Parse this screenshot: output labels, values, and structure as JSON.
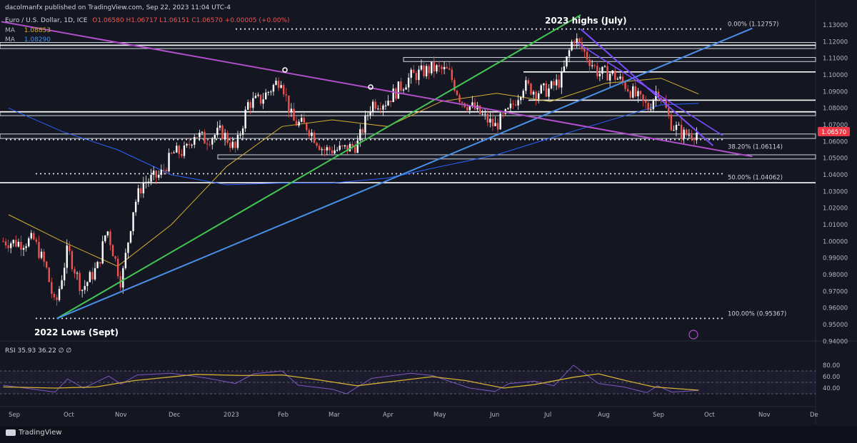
{
  "header": {
    "publisher": "dacolmanfx published on TradingView.com, Sep 22, 2023 11:04 UTC-4",
    "symbol": "Euro / U.S. Dollar, 1D, ICE",
    "ohlc": "O1.06580 H1.06717 L1.06151 C1.06570 +0.00005 (+0.00%)",
    "ma1_label": "MA",
    "ma1_value": "1.08853",
    "ma2_label": "MA",
    "ma2_value": "1.08290"
  },
  "footer": {
    "brand": "TradingView"
  },
  "colors": {
    "background": "#141722",
    "up": "#ffffff",
    "down": "#ef5350",
    "ma50": "#d4b030",
    "ma200": "#2962ff",
    "green_trend": "#44c553",
    "blue_trend": "#4a8fe8",
    "purple_trend": "#b04fc9",
    "violet_channel": "#7c4dff",
    "rsi": "#7e57c2",
    "rsi_ma": "#d4b030",
    "price_tag": "#f23645"
  },
  "chart_data": [
    {
      "type": "candlestick",
      "title": "Euro / U.S. Dollar, 1D, ICE",
      "x_tick_labels": [
        "Sep",
        "Oct",
        "Nov",
        "Dec",
        "2023",
        "Feb",
        "Mar",
        "Apr",
        "May",
        "Jun",
        "Jul",
        "Aug",
        "Sep",
        "Oct",
        "Nov",
        "De"
      ],
      "y_tick_labels": [
        "1.13000",
        "1.12000",
        "1.11000",
        "1.10000",
        "1.09000",
        "1.08000",
        "1.07000",
        "1.06000",
        "1.05000",
        "1.04000",
        "1.03000",
        "1.02000",
        "1.01000",
        "1.00000",
        "0.99000",
        "0.98000",
        "0.97000",
        "0.96000",
        "0.95000",
        "0.94000"
      ],
      "ylim": [
        0.94,
        1.135
      ],
      "last_price": "1.06570",
      "annotations": {
        "highs": "2023 highs (July)",
        "lows": "2022 Lows (Sept)"
      },
      "fibonacci": [
        {
          "label": "0.00% (1.12757)",
          "value": 1.12757
        },
        {
          "label": "38.20% (1.06114)",
          "value": 1.06114
        },
        {
          "label": "50.00% (1.04062)",
          "value": 1.04062
        },
        {
          "label": "100.00% (0.95367)",
          "value": 0.95367
        }
      ],
      "horizontal_lines": [
        1.1178,
        1.1018,
        1.0848,
        1.0778,
        1.0352
      ],
      "zones": [
        {
          "from": 1.1158,
          "to": 1.1195
        },
        {
          "from": 1.108,
          "to": 1.1105
        },
        {
          "from": 1.0755,
          "to": 1.078
        },
        {
          "from": 1.0618,
          "to": 1.0645
        },
        {
          "from": 1.0495,
          "to": 1.052
        }
      ],
      "trendlines": [
        {
          "name": "green",
          "from": [
            "2022-09-28",
            0.9536
          ],
          "to": [
            "2023-07-18",
            1.136
          ]
        },
        {
          "name": "blue",
          "from": [
            "2022-09-28",
            0.9536
          ],
          "to": [
            "2023-10-22",
            1.128
          ]
        },
        {
          "name": "purple",
          "from": [
            "2022-08-28",
            1.132
          ],
          "to": [
            "2023-10-22",
            1.051
          ]
        },
        {
          "name": "violet",
          "from": [
            "2023-07-18",
            1.1276
          ],
          "to": [
            "2023-09-30",
            1.0575
          ]
        }
      ],
      "series": [
        {
          "name": "EUR/USD daily",
          "points": [
            [
              "2022-08-29",
              1.0
            ],
            [
              "2022-09-08",
              0.999
            ],
            [
              "2022-09-15",
              1.001
            ],
            [
              "2022-09-22",
              0.984
            ],
            [
              "2022-09-27",
              0.96
            ],
            [
              "2022-10-04",
              0.995
            ],
            [
              "2022-10-12",
              0.971
            ],
            [
              "2022-10-21",
              0.985
            ],
            [
              "2022-10-26",
              1.008
            ],
            [
              "2022-11-03",
              0.975
            ],
            [
              "2022-11-10",
              1.021
            ],
            [
              "2022-11-15",
              1.035
            ],
            [
              "2022-11-25",
              1.04
            ],
            [
              "2022-12-02",
              1.053
            ],
            [
              "2022-12-09",
              1.054
            ],
            [
              "2022-12-14",
              1.065
            ],
            [
              "2022-12-20",
              1.061
            ],
            [
              "2022-12-29",
              1.066
            ],
            [
              "2023-01-06",
              1.055
            ],
            [
              "2023-01-13",
              1.083
            ],
            [
              "2023-01-20",
              1.085
            ],
            [
              "2023-02-01",
              1.099
            ],
            [
              "2023-02-02",
              1.091
            ],
            [
              "2023-02-07",
              1.072
            ],
            [
              "2023-02-15",
              1.069
            ],
            [
              "2023-02-24",
              1.055
            ],
            [
              "2023-03-07",
              1.055
            ],
            [
              "2023-03-15",
              1.058
            ],
            [
              "2023-03-23",
              1.083
            ],
            [
              "2023-03-31",
              1.084
            ],
            [
              "2023-04-14",
              1.099
            ],
            [
              "2023-04-26",
              1.104
            ],
            [
              "2023-05-05",
              1.102
            ],
            [
              "2023-05-12",
              1.085
            ],
            [
              "2023-05-19",
              1.08
            ],
            [
              "2023-05-31",
              1.069
            ],
            [
              "2023-06-08",
              1.078
            ],
            [
              "2023-06-16",
              1.094
            ],
            [
              "2023-06-23",
              1.09
            ],
            [
              "2023-06-30",
              1.091
            ],
            [
              "2023-07-07",
              1.097
            ],
            [
              "2023-07-14",
              1.123
            ],
            [
              "2023-07-21",
              1.112
            ],
            [
              "2023-07-28",
              1.101
            ],
            [
              "2023-08-04",
              1.101
            ],
            [
              "2023-08-11",
              1.095
            ],
            [
              "2023-08-18",
              1.087
            ],
            [
              "2023-08-25",
              1.08
            ],
            [
              "2023-08-30",
              1.092
            ],
            [
              "2023-09-07",
              1.07
            ],
            [
              "2023-09-14",
              1.064
            ],
            [
              "2023-09-22",
              1.0657
            ]
          ]
        },
        {
          "name": "MA 1.08853",
          "points": [
            [
              "2022-09-01",
              1.016
            ],
            [
              "2022-10-01",
              1.0
            ],
            [
              "2022-11-01",
              0.985
            ],
            [
              "2022-12-01",
              1.01
            ],
            [
              "2023-01-01",
              1.045
            ],
            [
              "2023-02-01",
              1.069
            ],
            [
              "2023-03-01",
              1.073
            ],
            [
              "2023-04-01",
              1.069
            ],
            [
              "2023-05-01",
              1.084
            ],
            [
              "2023-06-01",
              1.089
            ],
            [
              "2023-07-01",
              1.084
            ],
            [
              "2023-08-01",
              1.095
            ],
            [
              "2023-09-01",
              1.098
            ],
            [
              "2023-09-22",
              1.0885
            ]
          ]
        },
        {
          "name": "MA 1.08290",
          "points": [
            [
              "2022-09-01",
              1.08
            ],
            [
              "2022-10-01",
              1.066
            ],
            [
              "2022-11-01",
              1.055
            ],
            [
              "2022-12-01",
              1.04
            ],
            [
              "2023-01-01",
              1.034
            ],
            [
              "2023-02-01",
              1.035
            ],
            [
              "2023-03-01",
              1.035
            ],
            [
              "2023-04-01",
              1.038
            ],
            [
              "2023-05-01",
              1.045
            ],
            [
              "2023-06-01",
              1.052
            ],
            [
              "2023-07-01",
              1.062
            ],
            [
              "2023-08-01",
              1.072
            ],
            [
              "2023-09-01",
              1.082
            ],
            [
              "2023-09-22",
              1.0829
            ]
          ]
        }
      ]
    },
    {
      "type": "line",
      "title": "RSI",
      "legend_text": "RSI 35.93 36.22 ∅ ∅",
      "y_tick_labels": [
        "80.00",
        "60.00",
        "40.00"
      ],
      "ylim": [
        23,
        82
      ],
      "bands": [
        70,
        50,
        30
      ],
      "series": [
        {
          "name": "RSI",
          "values_label": "35.93",
          "points": [
            [
              "2022-08-29",
              45
            ],
            [
              "2022-09-27",
              33
            ],
            [
              "2022-10-04",
              56
            ],
            [
              "2022-10-13",
              40
            ],
            [
              "2022-10-27",
              61
            ],
            [
              "2022-11-03",
              47
            ],
            [
              "2022-11-12",
              63
            ],
            [
              "2022-12-01",
              66
            ],
            [
              "2022-12-20",
              58
            ],
            [
              "2023-01-06",
              48
            ],
            [
              "2023-01-16",
              65
            ],
            [
              "2023-02-01",
              70
            ],
            [
              "2023-02-10",
              45
            ],
            [
              "2023-03-01",
              38
            ],
            [
              "2023-03-09",
              30
            ],
            [
              "2023-03-23",
              57
            ],
            [
              "2023-04-14",
              66
            ],
            [
              "2023-04-26",
              62
            ],
            [
              "2023-05-17",
              40
            ],
            [
              "2023-05-31",
              34
            ],
            [
              "2023-06-08",
              48
            ],
            [
              "2023-06-22",
              52
            ],
            [
              "2023-07-03",
              44
            ],
            [
              "2023-07-14",
              80
            ],
            [
              "2023-07-28",
              48
            ],
            [
              "2023-08-11",
              42
            ],
            [
              "2023-08-24",
              32
            ],
            [
              "2023-08-30",
              44
            ],
            [
              "2023-09-07",
              33
            ],
            [
              "2023-09-22",
              35.93
            ]
          ]
        },
        {
          "name": "RSI MA",
          "values_label": "36.22",
          "points": [
            [
              "2022-08-29",
              42
            ],
            [
              "2022-09-27",
              40
            ],
            [
              "2022-10-20",
              42
            ],
            [
              "2022-11-10",
              53
            ],
            [
              "2022-12-15",
              64
            ],
            [
              "2023-01-10",
              62
            ],
            [
              "2023-02-01",
              63
            ],
            [
              "2023-02-20",
              55
            ],
            [
              "2023-03-15",
              44
            ],
            [
              "2023-04-05",
              52
            ],
            [
              "2023-04-26",
              60
            ],
            [
              "2023-05-15",
              53
            ],
            [
              "2023-06-05",
              40
            ],
            [
              "2023-06-22",
              46
            ],
            [
              "2023-07-14",
              59
            ],
            [
              "2023-07-28",
              65
            ],
            [
              "2023-08-11",
              54
            ],
            [
              "2023-08-28",
              42
            ],
            [
              "2023-09-22",
              36.22
            ]
          ]
        }
      ]
    }
  ]
}
